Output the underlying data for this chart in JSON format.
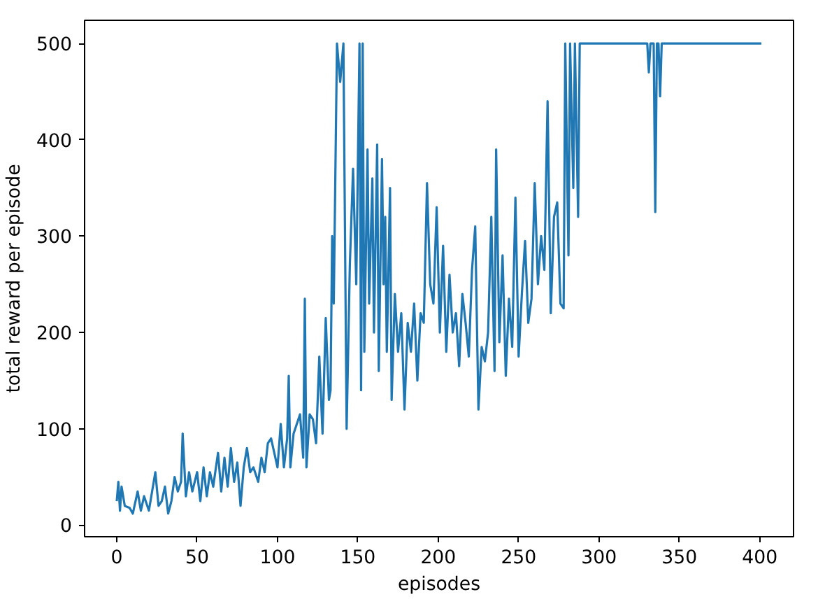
{
  "chart_data": {
    "type": "line",
    "xlabel": "episodes",
    "ylabel": "total reward per episode",
    "xlim": [
      -20,
      421
    ],
    "ylim": [
      -12,
      524
    ],
    "xticks": [
      0,
      50,
      100,
      150,
      200,
      250,
      300,
      350,
      400
    ],
    "yticks": [
      0,
      100,
      200,
      300,
      400,
      500
    ],
    "grid": false,
    "marker": "none",
    "line_style": "solid",
    "series": [
      {
        "color": "#1f77b4",
        "x": [
          0,
          1,
          2,
          3,
          5,
          8,
          10,
          13,
          15,
          17,
          20,
          22,
          24,
          26,
          28,
          30,
          32,
          34,
          36,
          38,
          40,
          41,
          43,
          45,
          47,
          50,
          52,
          54,
          56,
          58,
          60,
          63,
          65,
          67,
          69,
          71,
          73,
          75,
          77,
          79,
          81,
          83,
          85,
          88,
          90,
          92,
          94,
          96,
          98,
          100,
          102,
          104,
          106,
          107,
          108,
          110,
          112,
          114,
          116,
          117,
          118,
          120,
          122,
          124,
          126,
          128,
          130,
          132,
          133,
          134,
          135,
          137,
          139,
          141,
          143,
          145,
          147,
          149,
          151,
          152,
          153,
          154,
          156,
          157,
          159,
          160,
          162,
          163,
          165,
          166,
          167,
          168,
          170,
          171,
          173,
          175,
          177,
          179,
          181,
          183,
          185,
          187,
          189,
          191,
          193,
          195,
          197,
          199,
          201,
          203,
          205,
          207,
          209,
          211,
          213,
          215,
          217,
          219,
          221,
          223,
          225,
          227,
          229,
          231,
          233,
          235,
          236,
          238,
          240,
          242,
          244,
          246,
          248,
          250,
          252,
          254,
          256,
          258,
          260,
          262,
          264,
          266,
          268,
          270,
          272,
          274,
          276,
          278,
          279,
          281,
          282,
          284,
          285,
          287,
          288,
          300,
          330,
          331,
          332,
          334,
          335,
          336,
          337,
          338,
          339,
          401
        ],
        "values": [
          25,
          45,
          15,
          40,
          20,
          18,
          12,
          35,
          15,
          30,
          15,
          35,
          55,
          20,
          25,
          40,
          12,
          25,
          50,
          35,
          45,
          95,
          30,
          55,
          35,
          55,
          25,
          60,
          30,
          55,
          40,
          75,
          35,
          70,
          40,
          80,
          45,
          65,
          20,
          60,
          80,
          55,
          60,
          45,
          70,
          55,
          85,
          90,
          75,
          60,
          105,
          60,
          90,
          155,
          60,
          95,
          105,
          115,
          70,
          235,
          60,
          115,
          110,
          85,
          175,
          95,
          215,
          130,
          140,
          300,
          230,
          500,
          460,
          500,
          100,
          270,
          370,
          250,
          500,
          140,
          500,
          180,
          390,
          230,
          360,
          200,
          395,
          160,
          380,
          250,
          320,
          180,
          350,
          130,
          240,
          180,
          220,
          120,
          210,
          180,
          230,
          150,
          220,
          210,
          355,
          250,
          230,
          330,
          200,
          290,
          180,
          260,
          200,
          220,
          165,
          240,
          210,
          175,
          265,
          310,
          120,
          185,
          170,
          200,
          320,
          160,
          390,
          190,
          280,
          155,
          235,
          185,
          340,
          175,
          240,
          295,
          210,
          235,
          355,
          250,
          300,
          265,
          440,
          220,
          320,
          335,
          230,
          225,
          500,
          280,
          500,
          350,
          500,
          320,
          500,
          500,
          500,
          470,
          500,
          500,
          325,
          500,
          500,
          445,
          500,
          500
        ]
      }
    ]
  }
}
